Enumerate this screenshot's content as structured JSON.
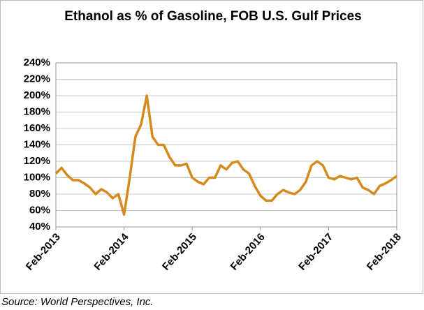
{
  "chart_data": {
    "type": "line",
    "title": "Ethanol as %  of Gasoline, FOB U.S. Gulf Prices",
    "note": "Source: World Perspectives, Inc.",
    "categories": [
      "Feb-2013",
      null,
      null,
      null,
      null,
      null,
      null,
      null,
      null,
      null,
      null,
      null,
      "Feb-2014",
      null,
      null,
      null,
      null,
      null,
      null,
      null,
      null,
      null,
      null,
      null,
      "Feb-2015",
      null,
      null,
      null,
      null,
      null,
      null,
      null,
      null,
      null,
      null,
      null,
      "Feb-2016",
      null,
      null,
      null,
      null,
      null,
      null,
      null,
      null,
      null,
      null,
      null,
      "Feb-2017",
      null,
      null,
      null,
      null,
      null,
      null,
      null,
      null,
      null,
      null,
      null,
      "Feb-2018"
    ],
    "series": [
      {
        "name": "Ethanol as % of Gasoline",
        "color": "#d68a1e",
        "values": [
          105,
          112,
          103,
          97,
          97,
          93,
          88,
          80,
          86,
          82,
          75,
          80,
          55,
          100,
          150,
          165,
          200,
          150,
          140,
          140,
          125,
          115,
          115,
          117,
          100,
          95,
          92,
          100,
          100,
          115,
          110,
          118,
          120,
          110,
          105,
          90,
          78,
          72,
          72,
          80,
          85,
          82,
          80,
          85,
          95,
          115,
          120,
          115,
          100,
          98,
          102,
          100,
          98,
          100,
          88,
          85,
          80,
          90,
          93,
          97,
          102
        ]
      }
    ],
    "ylim": [
      40,
      240
    ],
    "yticks": [
      {
        "value": 40,
        "label": "40%"
      },
      {
        "value": 60,
        "label": "60%"
      },
      {
        "value": 80,
        "label": "80%"
      },
      {
        "value": 100,
        "label": "100%"
      },
      {
        "value": 120,
        "label": "120%"
      },
      {
        "value": 140,
        "label": "140%"
      },
      {
        "value": 160,
        "label": "160%"
      },
      {
        "value": 180,
        "label": "180%"
      },
      {
        "value": 200,
        "label": "200%"
      },
      {
        "value": 220,
        "label": "220%"
      },
      {
        "value": 240,
        "label": "240%"
      }
    ],
    "grid": true
  }
}
